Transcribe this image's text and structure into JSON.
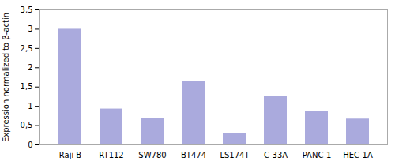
{
  "chart_data": {
    "type": "bar",
    "categories": [
      "Raji B",
      "RT112",
      "SW780",
      "BT474",
      "LS174T",
      "C-33A",
      "PANC-1",
      "HEC-1A"
    ],
    "values": [
      3.0,
      0.93,
      0.68,
      1.65,
      0.3,
      1.25,
      0.88,
      0.67
    ],
    "color": "#aaaadd",
    "ylabel": "Expression normalized to β-actin",
    "ylim": [
      0,
      3.5
    ],
    "yticks": [
      0,
      {
        "value": 0.5,
        "label": "0,5"
      },
      1,
      {
        "value": 1.5,
        "label": "1,5"
      },
      2,
      {
        "value": 2.5,
        "label": "2,5"
      },
      3,
      {
        "value": 3.5,
        "label": "3,5"
      }
    ],
    "grid": false
  }
}
